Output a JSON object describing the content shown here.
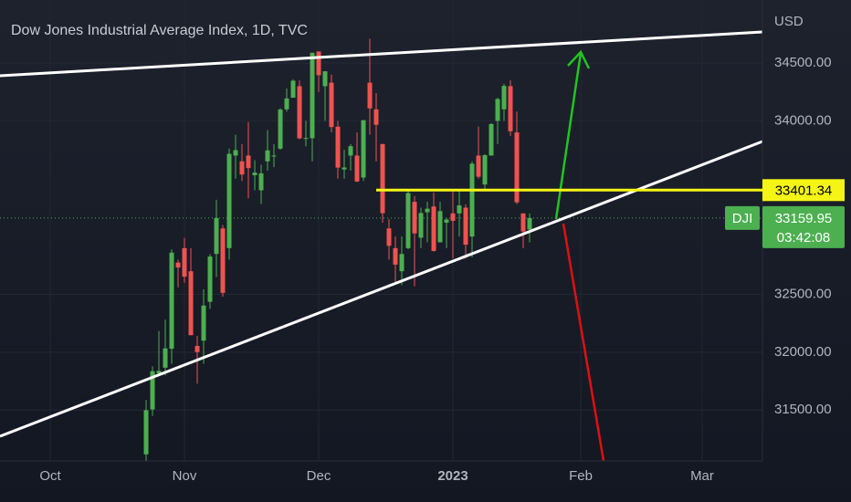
{
  "chart_data": {
    "type": "candlestick",
    "title": "Dow Jones Industrial Average Index, 1D, TVC",
    "currency": "USD",
    "x": [
      0,
      1,
      2,
      3,
      4,
      5,
      6,
      7,
      8,
      9,
      10,
      11,
      12,
      13,
      14,
      15,
      16,
      17,
      18,
      19,
      20,
      21,
      22,
      23,
      24,
      25,
      26,
      27,
      28,
      29,
      30,
      31,
      32,
      33,
      34,
      35,
      36,
      37,
      38,
      39,
      40,
      41,
      42,
      43,
      44,
      45,
      46,
      47,
      48,
      49,
      50,
      51,
      52,
      53,
      54,
      55,
      56,
      57,
      58,
      59,
      60
    ],
    "open": [
      31117,
      31505,
      31817,
      31866,
      32030,
      32775,
      32900,
      32700,
      32054,
      32100,
      32436,
      32850,
      33070,
      32900,
      33700,
      33650,
      33700,
      33530,
      33400,
      33650,
      33700,
      33760,
      34100,
      34200,
      34300,
      33850,
      33850,
      34600,
      34300,
      34330,
      33950,
      33580,
      33700,
      33700,
      33510,
      34330,
      34100,
      33800,
      33070,
      32900,
      32700,
      32900,
      33300,
      32990,
      33210,
      33260,
      32950,
      33120,
      33200,
      33200,
      33250,
      33000,
      33700,
      33450,
      33700,
      34000,
      34100,
      34300,
      33900,
      33200,
      33060
    ],
    "high": [
      31588,
      31878,
      32183,
      32281,
      32889,
      32801,
      32989,
      32900,
      32140,
      32544,
      32848,
      33318,
      33100,
      33760,
      33880,
      33800,
      33990,
      33660,
      33620,
      33920,
      33800,
      34110,
      34280,
      34360,
      34350,
      34000,
      34590,
      34600,
      34430,
      34400,
      34000,
      33750,
      33800,
      33900,
      34010,
      34710,
      34240,
      33800,
      33150,
      33000,
      33000,
      33400,
      33350,
      33250,
      33300,
      33380,
      33300,
      33160,
      33400,
      33400,
      33280,
      33650,
      33950,
      33710,
      33980,
      34200,
      34320,
      34350,
      34080,
      33200,
      33200
    ],
    "low": [
      31055,
      31449,
      31795,
      31800,
      31900,
      32560,
      32600,
      32147,
      31727,
      31900,
      32375,
      32650,
      32480,
      32800,
      33500,
      33480,
      33330,
      33400,
      33280,
      33570,
      33600,
      33750,
      34080,
      34200,
      33840,
      33780,
      33650,
      34250,
      34000,
      33900,
      33500,
      33500,
      33570,
      33470,
      33480,
      33880,
      33650,
      33120,
      32800,
      32600,
      32580,
      32890,
      32570,
      32900,
      32950,
      32870,
      32950,
      32900,
      32810,
      33000,
      32810,
      32820,
      33500,
      33400,
      33700,
      33800,
      34000,
      33870,
      33280,
      32900,
      32950
    ],
    "close": [
      31499,
      31836,
      31839,
      32033,
      32861,
      32732,
      32653,
      32147,
      32001,
      32403,
      32827,
      33160,
      32513,
      33715,
      33747,
      33536,
      33592,
      33553,
      33546,
      33745,
      33700,
      34098,
      34194,
      34347,
      33849,
      33852,
      34589,
      34395,
      34429,
      33947,
      33596,
      33597,
      33781,
      33476,
      34005,
      34108,
      33966,
      33202,
      32920,
      32757,
      32849,
      33376,
      33027,
      33203,
      33241,
      32875,
      33220,
      33147,
      33136,
      33269,
      32930,
      33630,
      33517,
      33704,
      33973,
      34189,
      34302,
      33910,
      33296,
      33044,
      33160
    ],
    "up_color": "#4caf50",
    "down_color": "#ef5350",
    "xlim": [
      -22.86,
      96.43
    ],
    "xticks": [
      {
        "value": -15,
        "label": "Oct"
      },
      {
        "value": 6,
        "label": "Nov"
      },
      {
        "value": 27,
        "label": "Dec"
      },
      {
        "value": 48,
        "label": "2023"
      },
      {
        "value": 68,
        "label": "Feb"
      },
      {
        "value": 87,
        "label": "Mar"
      }
    ],
    "ylim": [
      31060,
      35045
    ],
    "yticks": [
      {
        "value": 31500,
        "label": "31500.00"
      },
      {
        "value": 32000,
        "label": "32000.00"
      },
      {
        "value": 32500,
        "label": "32500.00"
      },
      {
        "value": 34000,
        "label": "34000.00"
      },
      {
        "value": 34500,
        "label": "34500.00"
      }
    ],
    "grid": true,
    "level_line": 33401.34,
    "symbol": "DJI",
    "last_price": 33159.95,
    "countdown": "03:42:08"
  }
}
